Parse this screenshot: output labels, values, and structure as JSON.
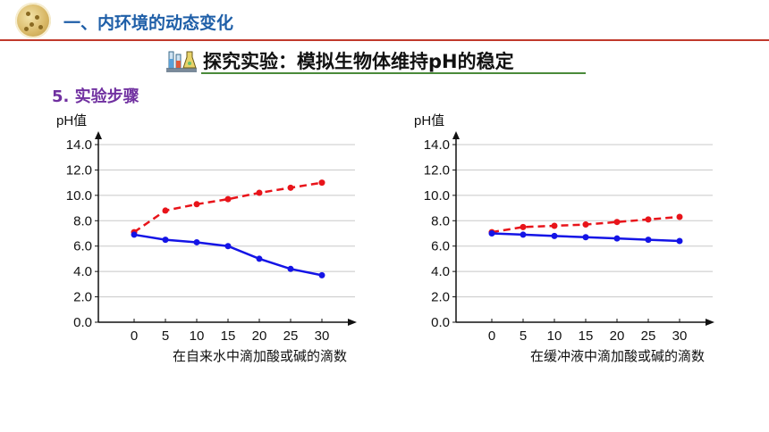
{
  "header": {
    "section_title": "一、内环境的动态变化"
  },
  "banner": {
    "title": "探究实验：模拟生物体维持pH的稳定",
    "icon": "lab-equipment-icon"
  },
  "step": {
    "title": "5. 实验步骤"
  },
  "colors": {
    "acid_series": "#e8141a",
    "base_series": "#1414e6",
    "header_blue": "#1f5fa8",
    "step_purple": "#7030a0"
  },
  "chart_data": [
    {
      "type": "line",
      "ylabel": "pH值",
      "xlabel": "在自来水中滴加酸或碱的滴数",
      "x": [
        0,
        5,
        10,
        15,
        20,
        25,
        30
      ],
      "yticks": [
        "14.0",
        "12.0",
        "10.0",
        "8.0",
        "6.0",
        "4.0",
        "2.0",
        "0.0"
      ],
      "ylim": [
        0,
        14
      ],
      "grid": true,
      "series": [
        {
          "style": "dashed",
          "color": "#e8141a",
          "values": [
            7.1,
            8.8,
            9.3,
            9.7,
            10.2,
            10.6,
            11.0
          ]
        },
        {
          "style": "solid",
          "color": "#1414e6",
          "values": [
            6.9,
            6.5,
            6.3,
            6.0,
            5.0,
            4.2,
            3.7
          ]
        }
      ]
    },
    {
      "type": "line",
      "ylabel": "pH值",
      "xlabel": "在缓冲液中滴加酸或碱的滴数",
      "x": [
        0,
        5,
        10,
        15,
        20,
        25,
        30
      ],
      "yticks": [
        "14.0",
        "12.0",
        "10.0",
        "8.0",
        "6.0",
        "4.0",
        "2.0",
        "0.0"
      ],
      "ylim": [
        0,
        14
      ],
      "grid": true,
      "series": [
        {
          "style": "dashed",
          "color": "#e8141a",
          "values": [
            7.1,
            7.5,
            7.6,
            7.7,
            7.9,
            8.1,
            8.3
          ]
        },
        {
          "style": "solid",
          "color": "#1414e6",
          "values": [
            7.0,
            6.9,
            6.8,
            6.7,
            6.6,
            6.5,
            6.4
          ]
        }
      ]
    }
  ]
}
